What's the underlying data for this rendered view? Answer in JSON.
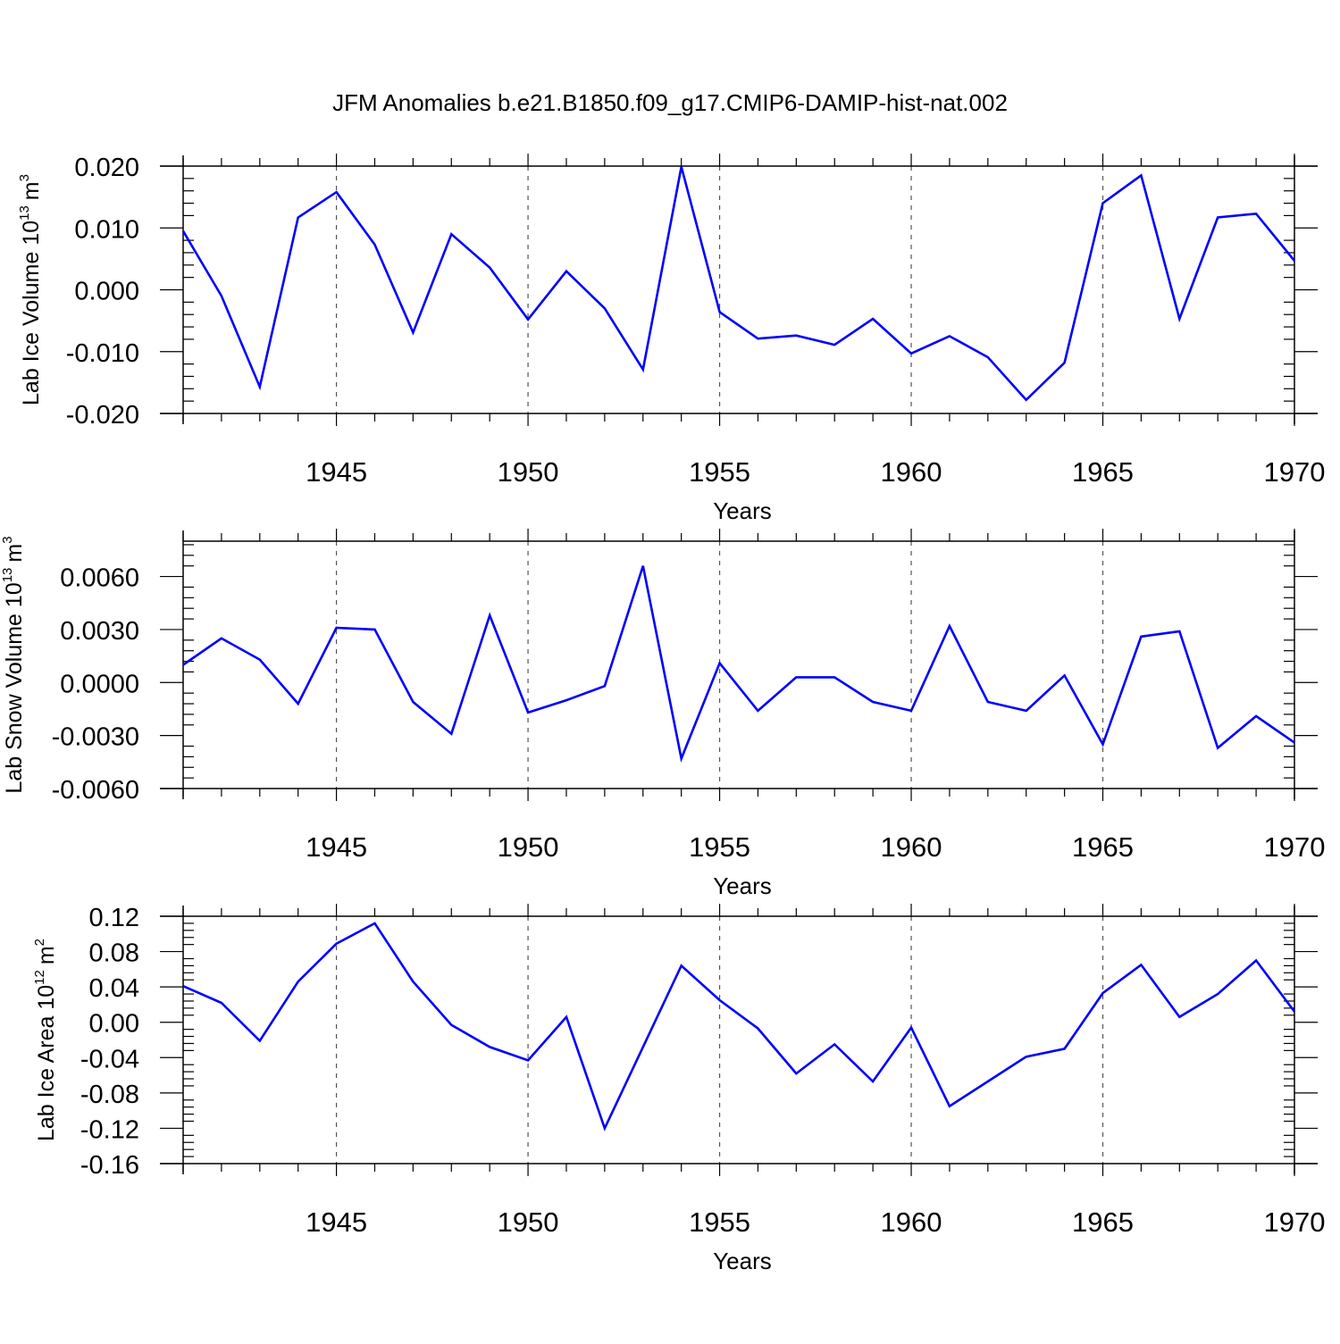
{
  "figure": {
    "title": "JFM Anomalies b.e21.B1850.f09_g17.CMIP6-DAMIP-hist-nat.002",
    "line_color": "#0000ff",
    "grid_color": "#555555"
  },
  "chart_data": [
    {
      "type": "line",
      "title": "JFM Anomalies b.e21.B1850.f09_g17.CMIP6-DAMIP-hist-nat.002",
      "xlabel": "Years",
      "ylabel": {
        "main": "Lab Ice Volume 10",
        "exp": "13",
        "unit": "m",
        "unit_exp": "3"
      },
      "xlim": [
        1941,
        1970
      ],
      "ylim": [
        -0.02,
        0.02
      ],
      "xticks": [
        1945,
        1950,
        1955,
        1960,
        1965,
        1970
      ],
      "xtick_labels": [
        "1945",
        "1950",
        "1955",
        "1960",
        "1965",
        "1970"
      ],
      "yticks": [
        0.02,
        0.01,
        0.0,
        -0.01,
        -0.02
      ],
      "ytick_labels": [
        "0.020",
        "0.010",
        "0.000",
        "-0.010",
        "-0.020"
      ],
      "grid": "dashed vertical at major x ticks",
      "x": [
        1941,
        1942,
        1943,
        1944,
        1945,
        1946,
        1947,
        1948,
        1949,
        1950,
        1951,
        1952,
        1953,
        1954,
        1955,
        1956,
        1957,
        1958,
        1959,
        1960,
        1961,
        1962,
        1963,
        1964,
        1965,
        1966,
        1967,
        1968,
        1969,
        1970
      ],
      "values": [
        0.0095,
        -0.001,
        -0.0157,
        0.0117,
        0.0158,
        0.0073,
        -0.0069,
        0.009,
        0.0036,
        -0.0048,
        0.003,
        -0.003,
        -0.0129,
        0.0199,
        -0.0036,
        -0.0079,
        -0.0074,
        -0.0089,
        -0.0047,
        -0.0103,
        -0.0075,
        -0.0109,
        -0.0178,
        -0.0118,
        0.014,
        0.0185,
        -0.0047,
        0.0117,
        0.0123,
        0.0047
      ]
    },
    {
      "type": "line",
      "xlabel": "Years",
      "ylabel": {
        "main": "Lab Snow Volume 10",
        "exp": "13",
        "unit": "m",
        "unit_exp": "3"
      },
      "xlim": [
        1941,
        1970
      ],
      "ylim": [
        -0.006,
        0.008
      ],
      "xticks": [
        1945,
        1950,
        1955,
        1960,
        1965,
        1970
      ],
      "xtick_labels": [
        "1945",
        "1950",
        "1955",
        "1960",
        "1965",
        "1970"
      ],
      "yticks": [
        0.006,
        0.003,
        0.0,
        -0.003,
        -0.006
      ],
      "ytick_labels": [
        "0.0060",
        "0.0030",
        "0.0000",
        "-0.0030",
        "-0.0060"
      ],
      "grid": "dashed vertical at major x ticks",
      "x": [
        1941,
        1942,
        1943,
        1944,
        1945,
        1946,
        1947,
        1948,
        1949,
        1950,
        1951,
        1952,
        1953,
        1954,
        1955,
        1956,
        1957,
        1958,
        1959,
        1960,
        1961,
        1962,
        1963,
        1964,
        1965,
        1966,
        1967,
        1968,
        1969,
        1970
      ],
      "values": [
        0.001,
        0.0025,
        0.0013,
        -0.0012,
        0.0031,
        0.003,
        -0.0011,
        -0.0029,
        0.0038,
        -0.0017,
        -0.001,
        -0.0002,
        0.0066,
        -0.0043,
        0.0011,
        -0.0016,
        0.0003,
        0.0003,
        -0.0011,
        -0.0016,
        0.0032,
        -0.0011,
        -0.0016,
        0.0004,
        -0.0035,
        0.0026,
        0.0029,
        -0.0037,
        -0.0019,
        -0.0034
      ]
    },
    {
      "type": "line",
      "xlabel": "Years",
      "ylabel": {
        "main": "Lab Ice Area 10",
        "exp": "12",
        "unit": "m",
        "unit_exp": "2"
      },
      "xlim": [
        1941,
        1970
      ],
      "ylim": [
        -0.16,
        0.12
      ],
      "xticks": [
        1945,
        1950,
        1955,
        1960,
        1965,
        1970
      ],
      "xtick_labels": [
        "1945",
        "1950",
        "1955",
        "1960",
        "1965",
        "1970"
      ],
      "yticks": [
        0.12,
        0.08,
        0.04,
        0.0,
        -0.04,
        -0.08,
        -0.12,
        -0.16
      ],
      "ytick_labels": [
        "0.12",
        "0.08",
        "0.04",
        "0.00",
        "-0.04",
        "-0.08",
        "-0.12",
        "-0.16"
      ],
      "grid": "dashed vertical at major x ticks",
      "x": [
        1941,
        1942,
        1943,
        1944,
        1945,
        1946,
        1947,
        1948,
        1949,
        1950,
        1951,
        1952,
        1953,
        1954,
        1955,
        1956,
        1957,
        1958,
        1959,
        1960,
        1961,
        1962,
        1963,
        1964,
        1965,
        1966,
        1967,
        1968,
        1969,
        1970
      ],
      "values": [
        0.041,
        0.022,
        -0.021,
        0.046,
        0.089,
        0.112,
        0.046,
        -0.003,
        -0.028,
        -0.043,
        0.006,
        -0.12,
        -0.028,
        0.064,
        0.025,
        -0.007,
        -0.058,
        -0.025,
        -0.067,
        -0.006,
        -0.095,
        -0.067,
        -0.039,
        -0.03,
        0.033,
        0.065,
        0.006,
        0.032,
        0.07,
        0.012
      ]
    }
  ]
}
